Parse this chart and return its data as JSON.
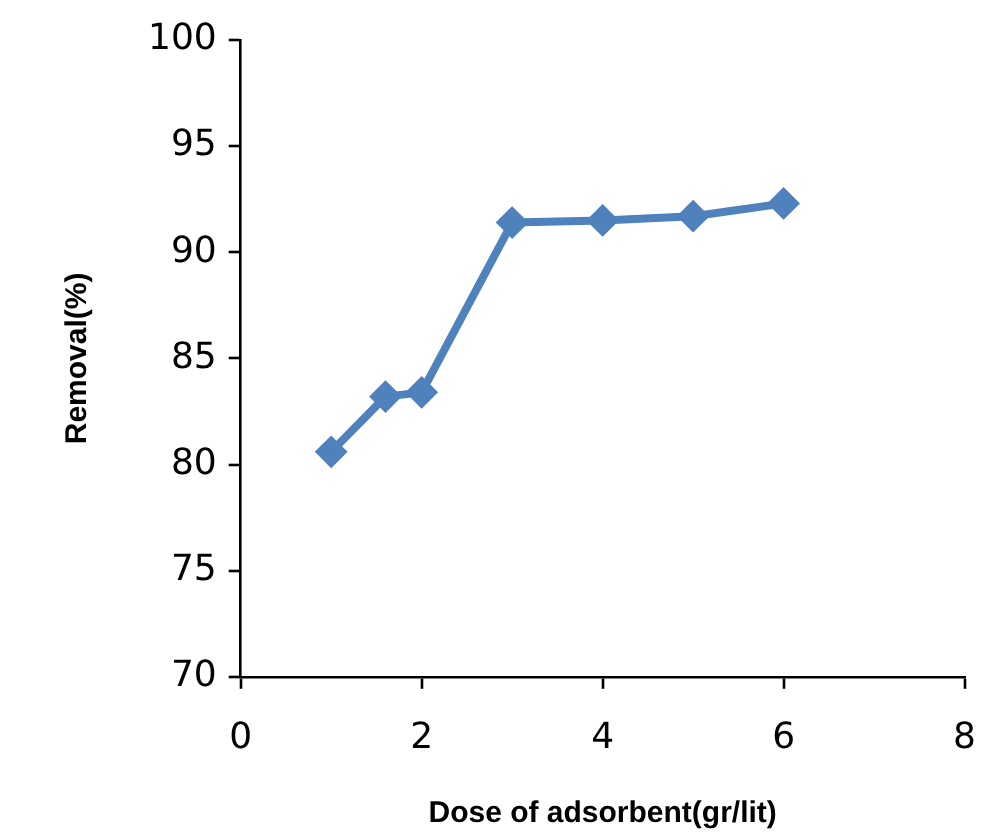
{
  "chart_data": {
    "type": "line",
    "xlabel": "Dose of adsorbent(gr/lit)",
    "ylabel": "Removal(%)",
    "x": [
      1,
      1.6,
      2,
      3,
      4,
      5,
      6
    ],
    "series": [
      {
        "color": "#4f81bd",
        "values": [
          80.6,
          83.2,
          83.4,
          91.4,
          91.5,
          91.7,
          92.3
        ]
      }
    ],
    "xlim": [
      0,
      8
    ],
    "xticks": [
      0,
      2,
      4,
      6,
      8
    ],
    "ylim": [
      70,
      100
    ],
    "yticks": [
      70,
      75,
      80,
      85,
      90,
      95,
      100
    ],
    "grid": false,
    "legend": false,
    "marker": "diamond",
    "line_style": "solid"
  }
}
